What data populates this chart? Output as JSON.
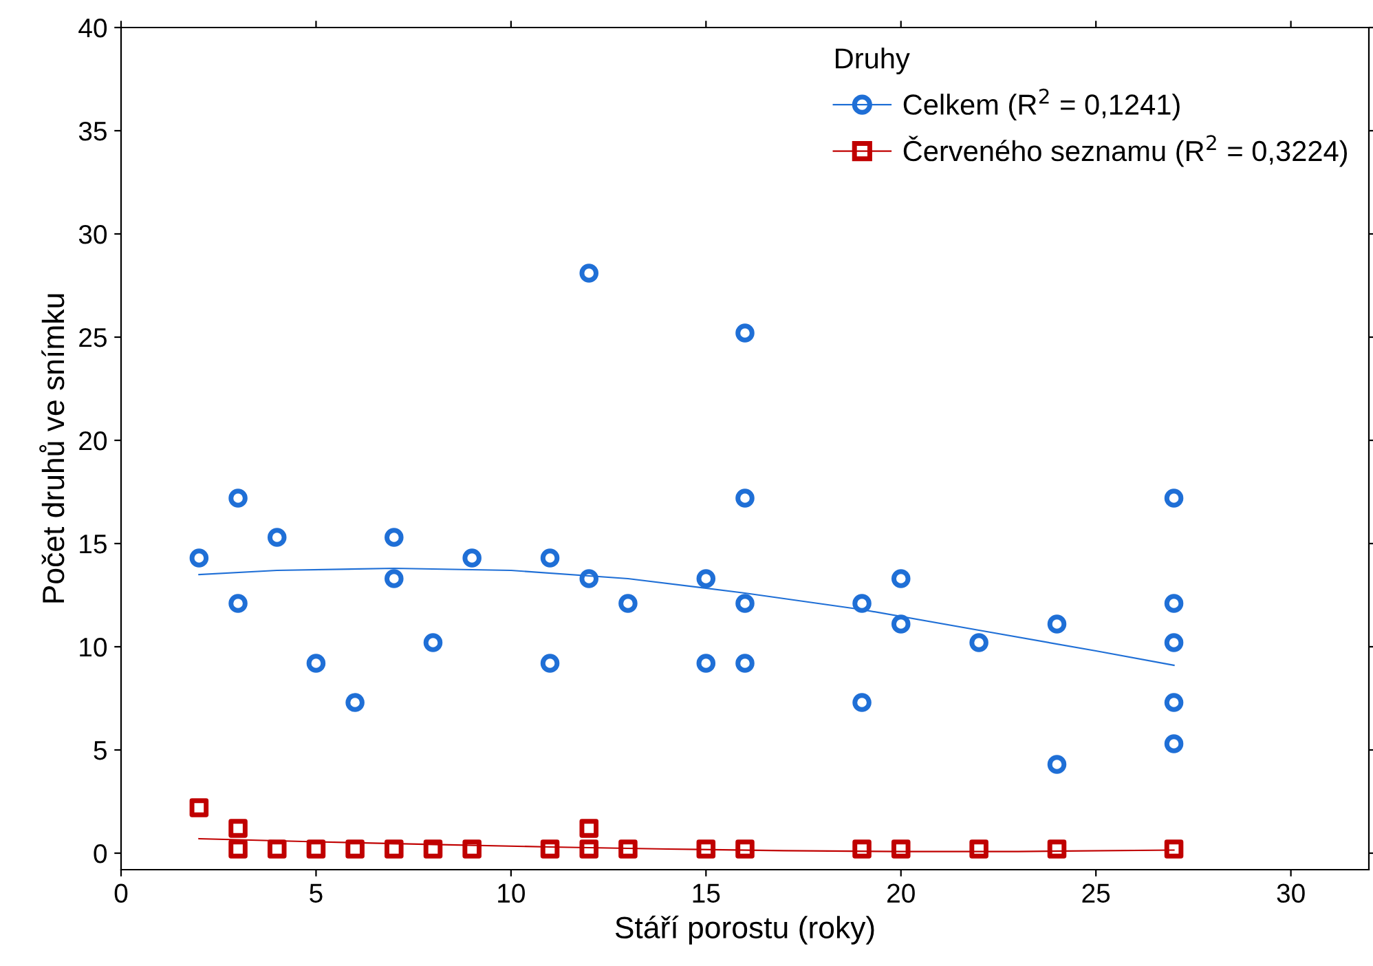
{
  "chart_data": {
    "type": "scatter",
    "xlabel": "Stáří porostu (roky)",
    "ylabel": "Počet druhů ve snímku",
    "legend_title": "Druhy",
    "legend": "top right",
    "grid": false,
    "xlim": [
      0,
      32
    ],
    "xticks": [
      0,
      5,
      10,
      15,
      20,
      25,
      30
    ],
    "ylim": [
      -0.8,
      40
    ],
    "yticks": [
      0,
      5,
      10,
      15,
      20,
      25,
      30,
      35,
      40
    ],
    "series": [
      {
        "name": "Celkem (R$^{2}$ = 0,1241)",
        "color": "#1f6fd6",
        "marker": "circle",
        "x": [
          2,
          3,
          3,
          4,
          5,
          6,
          7,
          7,
          8,
          9,
          11,
          11,
          12,
          12,
          13,
          15,
          15,
          16,
          16,
          16,
          16,
          19,
          19,
          20,
          20,
          22,
          24,
          24,
          27,
          27,
          27,
          27,
          27
        ],
        "values": [
          14.3,
          17.2,
          12.1,
          15.3,
          9.2,
          7.3,
          15.3,
          13.3,
          10.2,
          14.3,
          14.3,
          9.2,
          28.1,
          13.3,
          12.1,
          13.3,
          9.2,
          25.2,
          17.2,
          12.1,
          9.2,
          12.1,
          7.3,
          13.3,
          11.1,
          10.2,
          11.1,
          4.3,
          17.2,
          12.1,
          10.2,
          7.3,
          5.3
        ]
      },
      {
        "name": "Červeného seznamu (R$^{2}$ = 0,3224)",
        "color": "#c00000",
        "marker": "square",
        "x": [
          2,
          3,
          3,
          4,
          5,
          6,
          7,
          8,
          9,
          11,
          12,
          12,
          13,
          15,
          16,
          19,
          20,
          22,
          24,
          27
        ],
        "values": [
          2.2,
          1.2,
          0.2,
          0.2,
          0.2,
          0.2,
          0.2,
          0.2,
          0.2,
          0.2,
          1.2,
          0.2,
          0.2,
          0.2,
          0.2,
          0.2,
          0.2,
          0.2,
          0.2,
          0.2
        ]
      },
      {
        "type": "line",
        "color": "#1f6fd6",
        "marker": "none",
        "x": [
          2,
          4,
          7,
          10,
          13,
          16,
          19,
          22,
          25,
          27
        ],
        "values": [
          13.5,
          13.7,
          13.8,
          13.7,
          13.3,
          12.6,
          11.8,
          10.8,
          9.8,
          9.1
        ]
      },
      {
        "type": "line",
        "color": "#c00000",
        "marker": "none",
        "x": [
          2,
          5,
          8,
          11,
          14,
          17,
          20,
          23,
          27
        ],
        "values": [
          0.7,
          0.55,
          0.42,
          0.3,
          0.2,
          0.12,
          0.08,
          0.08,
          0.15
        ]
      }
    ]
  }
}
